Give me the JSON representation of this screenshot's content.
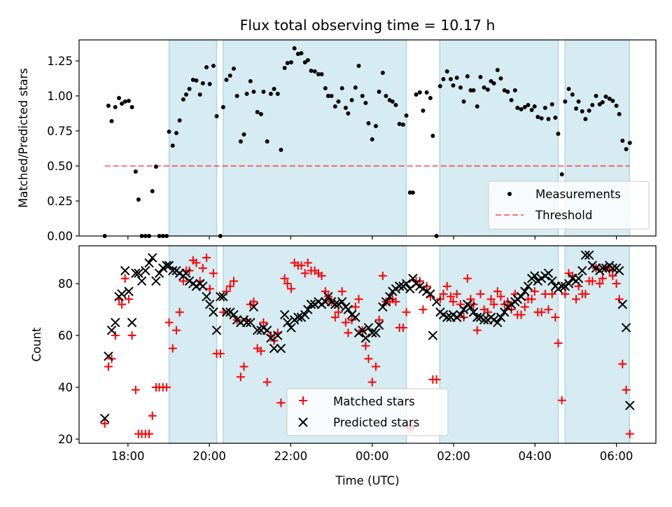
{
  "chart_data": [
    {
      "type": "scatter",
      "title": "Flux total observing time = 10.17 h",
      "xlabel": "",
      "ylabel": "Matched/Predicted stars",
      "ylim": [
        0,
        1.4
      ],
      "xlim": [
        16.8,
        30.97
      ],
      "yticks": [
        0,
        0.25,
        0.5,
        0.75,
        1.0,
        1.25
      ],
      "ytick_labels": [
        "0.00",
        "0.25",
        "0.50",
        "0.75",
        "1.00",
        "1.25"
      ],
      "threshold": 0.5,
      "legend": {
        "placement": "lower-right",
        "entries": [
          "Measurements",
          "Threshold"
        ]
      },
      "colors": {
        "measurements": "#000000",
        "threshold": "#ff7f7f",
        "band": "#add8e6"
      }
    },
    {
      "type": "scatter",
      "xlabel": "Time (UTC)",
      "ylabel": "Count",
      "ylim": [
        18.4,
        94.6
      ],
      "xlim": [
        16.8,
        30.97
      ],
      "yticks": [
        20,
        40,
        60,
        80
      ],
      "ytick_labels": [
        "20",
        "40",
        "60",
        "80"
      ],
      "legend": {
        "placement": "lower-center",
        "entries": [
          "Matched stars",
          "Predicted stars"
        ]
      },
      "colors": {
        "matched": "#ff0000",
        "predicted": "#000000"
      }
    }
  ],
  "x_ticks": [
    18,
    20,
    22,
    24,
    26,
    28,
    30
  ],
  "x_tick_labels": [
    "18:00",
    "20:00",
    "22:00",
    "00:00",
    "02:00",
    "04:00",
    "06:00"
  ],
  "observing_bands": [
    [
      19.01,
      20.18
    ],
    [
      20.34,
      24.84
    ],
    [
      25.66,
      28.57
    ],
    [
      28.74,
      30.32
    ]
  ],
  "series": {
    "time": [
      17.43,
      17.52,
      17.6,
      17.69,
      17.78,
      17.85,
      17.93,
      18.02,
      18.1,
      18.19,
      18.26,
      18.34,
      18.43,
      18.52,
      18.6,
      18.69,
      18.77,
      18.86,
      18.95,
      19.01,
      19.1,
      19.19,
      19.27,
      19.36,
      19.43,
      19.51,
      19.6,
      19.68,
      19.77,
      19.84,
      19.93,
      20.01,
      20.1,
      20.18,
      20.27,
      20.34,
      20.42,
      20.51,
      20.6,
      20.68,
      20.77,
      20.85,
      20.92,
      21.01,
      21.09,
      21.18,
      21.27,
      21.33,
      21.42,
      21.51,
      21.59,
      21.68,
      21.76,
      21.85,
      21.92,
      22.01,
      22.09,
      22.18,
      22.26,
      22.35,
      22.42,
      22.5,
      22.59,
      22.68,
      22.76,
      22.85,
      22.92,
      23.0,
      23.09,
      23.17,
      23.26,
      23.35,
      23.41,
      23.5,
      23.59,
      23.67,
      23.76,
      23.84,
      23.91,
      24.0,
      24.09,
      24.17,
      24.26,
      24.34,
      24.43,
      24.5,
      24.58,
      24.67,
      24.76,
      24.84,
      24.93,
      25.0,
      25.08,
      25.17,
      25.25,
      25.34,
      25.43,
      25.49,
      25.58,
      25.67,
      25.75,
      25.84,
      25.93,
      25.99,
      26.08,
      26.17,
      26.25,
      26.34,
      26.42,
      26.49,
      26.58,
      26.66,
      26.75,
      26.84,
      26.92,
      26.99,
      27.08,
      27.16,
      27.25,
      27.33,
      27.42,
      27.51,
      27.57,
      27.66,
      27.75,
      27.83,
      27.92,
      27.99,
      28.07,
      28.16,
      28.25,
      28.33,
      28.42,
      28.5,
      28.57,
      28.66,
      28.74,
      28.83,
      28.92,
      29.01,
      29.07,
      29.16,
      29.24,
      29.33,
      29.41,
      29.5,
      29.59,
      29.66,
      29.74,
      29.83,
      29.91,
      30.0,
      30.07,
      30.15,
      30.24,
      30.33
    ],
    "ratio": [
      0,
      0.93,
      0.82,
      0.92,
      0.985,
      0.945,
      0.96,
      0.965,
      0.92,
      0.46,
      0.26,
      0,
      0,
      0,
      0.32,
      0.495,
      0,
      0,
      0,
      0.745,
      0.645,
      0.735,
      0.825,
      0.975,
      1.01,
      1.05,
      1.115,
      1.11,
      1.01,
      1.09,
      1.205,
      1.085,
      1.215,
      0.855,
      0,
      0.92,
      1.115,
      1.145,
      1.195,
      1.0,
      0.675,
      0.725,
      1.015,
      1.105,
      1.03,
      0.885,
      0.87,
      1.03,
      0.675,
      1.015,
      1.05,
      1.015,
      0.615,
      1.2,
      1.235,
      1.24,
      1.34,
      1.3,
      1.305,
      1.24,
      1.255,
      1.18,
      1.175,
      1.155,
      1.155,
      1.055,
      1.0,
      1.0,
      0.925,
      0.96,
      1.055,
      0.915,
      0.875,
      0.97,
      1.06,
      1.215,
      1.0,
      0.95,
      0.805,
      0.69,
      0.785,
      1.03,
      1.165,
      1.0,
      0.97,
      0.96,
      0.935,
      0.8,
      0.795,
      0.86,
      0.31,
      0.31,
      1.01,
      1.025,
      0.895,
      1.025,
      0.985,
      0.715,
      0,
      1.07,
      1.12,
      1.175,
      1.12,
      1.075,
      1.13,
      1.06,
      0.96,
      1.14,
      1.04,
      1.04,
      0.925,
      1.135,
      1.06,
      1.045,
      1.105,
      1.09,
      1.185,
      1.125,
      1.04,
      1.03,
      0.97,
      1.04,
      0.915,
      0.905,
      0.92,
      0.935,
      0.9,
      0.925,
      0.85,
      0.84,
      0.915,
      0.835,
      0.94,
      0.845,
      0.73,
      0.44,
      0.96,
      1.05,
      1.01,
      0.91,
      0.96,
      0.89,
      0.835,
      0.895,
      0.935,
      1.0,
      0.94,
      0.955,
      0.995,
      0.98,
      0.965,
      0.93,
      0.87,
      0.68,
      0.62,
      0.665
    ],
    "matched": [
      26,
      48,
      51,
      60,
      74,
      72,
      82,
      74,
      60,
      39,
      22,
      22,
      22,
      22,
      29,
      40,
      40,
      40,
      40,
      65,
      55,
      62,
      69,
      81,
      85,
      85,
      89,
      88,
      81,
      86,
      90,
      78,
      84,
      53,
      53,
      69,
      77,
      79,
      81,
      66,
      44,
      48,
      66,
      72,
      73,
      55,
      54,
      65,
      42,
      60,
      58,
      61,
      34,
      82,
      80,
      78,
      88,
      87,
      87,
      84,
      88,
      85,
      85,
      84,
      83,
      77,
      75,
      73,
      67,
      69,
      77,
      65,
      61,
      66,
      71,
      74,
      62,
      56,
      51,
      42,
      48,
      66,
      83,
      73,
      73,
      74,
      73,
      63,
      63,
      69,
      24,
      25,
      81,
      81,
      70,
      79,
      75,
      43,
      43,
      74,
      76,
      79,
      75,
      73,
      76,
      72,
      67,
      82,
      74,
      72,
      62,
      76,
      70,
      69,
      74,
      72,
      77,
      75,
      72,
      73,
      70,
      76,
      68,
      68,
      71,
      74,
      74,
      77,
      69,
      69,
      76,
      70,
      76,
      67,
      57,
      35,
      76,
      84,
      83,
      74,
      79,
      76,
      76,
      81,
      81,
      86,
      80,
      82,
      86,
      85,
      83,
      80,
      74,
      49,
      39,
      22
    ],
    "predicted": [
      28,
      52,
      62,
      65,
      75,
      76,
      85,
      77,
      65,
      84,
      84,
      81,
      85,
      88,
      90,
      81,
      84,
      86,
      87,
      87,
      85,
      85,
      84,
      83,
      84,
      81,
      80,
      79,
      80,
      79,
      75,
      72,
      69,
      62,
      75,
      75,
      69,
      69,
      68,
      66,
      65,
      66,
      65,
      65,
      71,
      62,
      62,
      63,
      62,
      59,
      55,
      60,
      55,
      68,
      65,
      63,
      66,
      67,
      67,
      68,
      70,
      72,
      72,
      73,
      72,
      73,
      75,
      73,
      72,
      72,
      73,
      71,
      70,
      68,
      67,
      61,
      62,
      59,
      63,
      61,
      61,
      64,
      71,
      73,
      75,
      77,
      78,
      79,
      79,
      80,
      78,
      82,
      80,
      79,
      78,
      77,
      76,
      60,
      73,
      69,
      68,
      67,
      67,
      68,
      67,
      68,
      70,
      72,
      71,
      69,
      67,
      67,
      66,
      66,
      67,
      66,
      65,
      67,
      69,
      71,
      72,
      73,
      74,
      75,
      77,
      79,
      82,
      83,
      81,
      82,
      83,
      84,
      81,
      79,
      78,
      79,
      79,
      80,
      82,
      81,
      82,
      85,
      91,
      91,
      87,
      86,
      85,
      86,
      86,
      87,
      86,
      86,
      85,
      72,
      63,
      33
    ]
  }
}
